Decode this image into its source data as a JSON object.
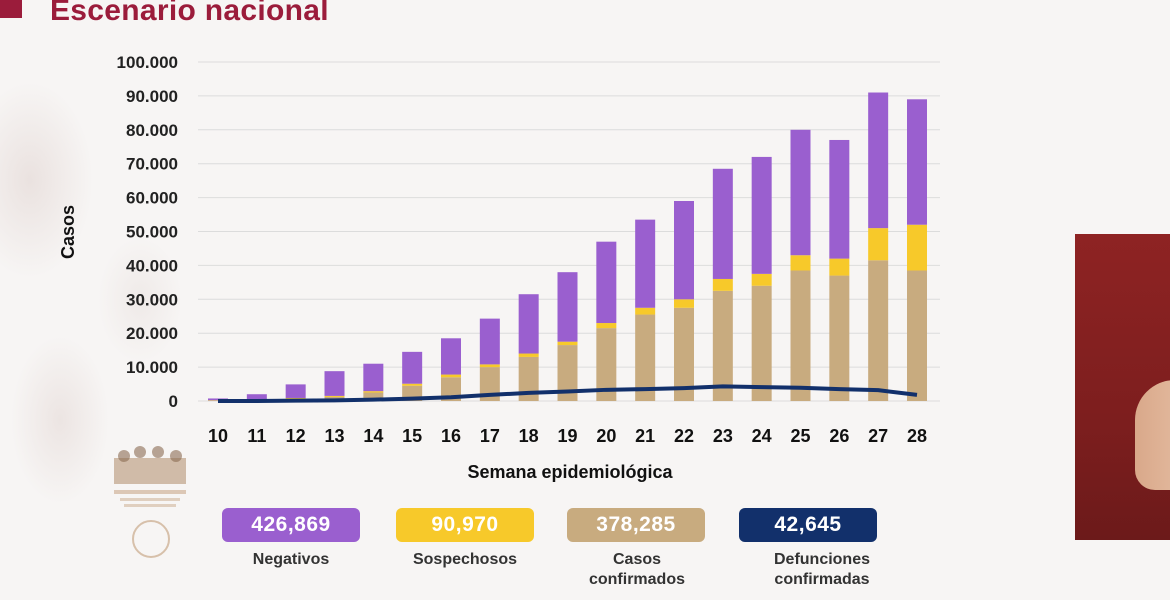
{
  "header": {
    "title": "Escenario nacional"
  },
  "colors": {
    "negativos": "#9a5fcf",
    "sospechosos": "#f7c92a",
    "confirmados": "#c8ab7f",
    "defunciones": "#12306b",
    "title": "#9b1c3b"
  },
  "chart_data": {
    "type": "bar",
    "stacked": true,
    "title": "",
    "xlabel": "Semana epidemiológica",
    "ylabel": "Casos",
    "ylim": [
      0,
      100000
    ],
    "yticks": [
      "0",
      "10.000",
      "20.000",
      "30.000",
      "40.000",
      "50.000",
      "60.000",
      "70.000",
      "80.000",
      "90.000",
      "100.000"
    ],
    "categories": [
      "10",
      "11",
      "12",
      "13",
      "14",
      "15",
      "16",
      "17",
      "18",
      "19",
      "20",
      "21",
      "22",
      "23",
      "24",
      "25",
      "26",
      "27",
      "28"
    ],
    "series": [
      {
        "name": "Casos confirmados",
        "values": [
          200,
          400,
          700,
          1200,
          2500,
          4500,
          7000,
          10000,
          13000,
          16500,
          21500,
          25500,
          27500,
          32500,
          34000,
          38500,
          37000,
          41500,
          38500
        ]
      },
      {
        "name": "Sospechosos",
        "values": [
          50,
          100,
          200,
          300,
          400,
          600,
          800,
          800,
          1000,
          1000,
          1500,
          2000,
          2500,
          3500,
          3500,
          4500,
          5000,
          9500,
          13500
        ]
      },
      {
        "name": "Negativos",
        "values": [
          500,
          1500,
          4000,
          7300,
          8100,
          9400,
          10700,
          13500,
          17500,
          20500,
          24000,
          26000,
          29000,
          32500,
          34500,
          37000,
          35000,
          40000,
          37000
        ]
      },
      {
        "name": "Defunciones confirmadas",
        "type": "line",
        "values": [
          0,
          0,
          100,
          200,
          400,
          700,
          1100,
          1800,
          2400,
          2800,
          3300,
          3500,
          3800,
          4300,
          4100,
          3900,
          3500,
          3200,
          1800
        ]
      }
    ]
  },
  "legend": [
    {
      "value": "426,869",
      "label": "Negativos"
    },
    {
      "value": "90,970",
      "label": "Sospechosos"
    },
    {
      "value": "378,285",
      "label": "Casos confirmados"
    },
    {
      "value": "42,645",
      "label": "Defunciones confirmadas"
    }
  ]
}
